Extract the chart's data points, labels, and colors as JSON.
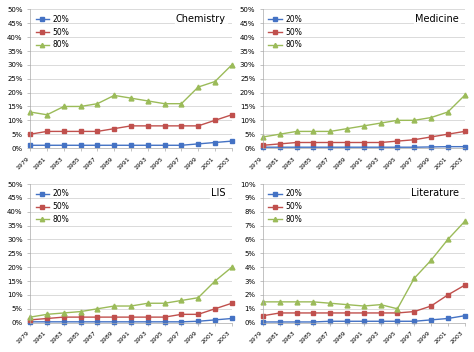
{
  "years": [
    1979,
    1981,
    1983,
    1985,
    1987,
    1989,
    1991,
    1993,
    1995,
    1997,
    1999,
    2001,
    2003
  ],
  "subplots": [
    {
      "title": "Chemistry",
      "ylim": [
        0,
        50
      ],
      "yticks": [
        0,
        5,
        10,
        15,
        20,
        25,
        30,
        35,
        40,
        45,
        50
      ],
      "yticklabels": [
        "0%",
        "5%",
        "10%",
        "15%",
        "20%",
        "25%",
        "30%",
        "35%",
        "40%",
        "45%",
        "50%"
      ],
      "data_20": [
        1,
        1,
        1,
        1,
        1,
        1,
        1,
        1,
        1,
        1,
        1.5,
        2,
        2.5
      ],
      "data_50": [
        5,
        6,
        6,
        6,
        6,
        7,
        8,
        8,
        8,
        8,
        8,
        10,
        12
      ],
      "data_80": [
        13,
        12,
        15,
        15,
        16,
        19,
        18,
        17,
        16,
        16,
        22,
        24,
        30
      ]
    },
    {
      "title": "Medicine",
      "ylim": [
        0,
        50
      ],
      "yticks": [
        0,
        5,
        10,
        15,
        20,
        25,
        30,
        35,
        40,
        45,
        50
      ],
      "yticklabels": [
        "0%",
        "5%",
        "10%",
        "15%",
        "20%",
        "25%",
        "30%",
        "35%",
        "40%",
        "45%",
        "50%"
      ],
      "data_20": [
        0.3,
        0.3,
        0.3,
        0.3,
        0.3,
        0.3,
        0.3,
        0.3,
        0.3,
        0.3,
        0.4,
        0.5,
        0.5
      ],
      "data_50": [
        1,
        1.5,
        2,
        2,
        2,
        2,
        2,
        2,
        2.5,
        3,
        4,
        5,
        6
      ],
      "data_80": [
        4,
        5,
        6,
        6,
        6,
        7,
        8,
        9,
        10,
        10,
        11,
        13,
        19
      ]
    },
    {
      "title": "LIS",
      "ylim": [
        0,
        50
      ],
      "yticks": [
        0,
        5,
        10,
        15,
        20,
        25,
        30,
        35,
        40,
        45,
        50
      ],
      "yticklabels": [
        "0%",
        "5%",
        "10%",
        "15%",
        "20%",
        "25%",
        "30%",
        "35%",
        "40%",
        "45%",
        "50%"
      ],
      "data_20": [
        0.3,
        0.3,
        0.3,
        0.3,
        0.3,
        0.3,
        0.3,
        0.3,
        0.3,
        0.3,
        0.5,
        1,
        1.5
      ],
      "data_50": [
        1,
        1.5,
        2,
        2,
        2,
        2,
        2,
        2,
        2,
        3,
        3,
        5,
        7
      ],
      "data_80": [
        2,
        3,
        3.5,
        4,
        5,
        6,
        6,
        7,
        7,
        8,
        9,
        15,
        20
      ]
    },
    {
      "title": "Literature",
      "ylim": [
        0,
        10
      ],
      "yticks": [
        0,
        1,
        2,
        3,
        4,
        5,
        6,
        7,
        8,
        9,
        10
      ],
      "yticklabels": [
        "0%",
        "1%",
        "2%",
        "3%",
        "4%",
        "5%",
        "6%",
        "7%",
        "8%",
        "9%",
        "10%"
      ],
      "data_20": [
        0.05,
        0.05,
        0.05,
        0.05,
        0.1,
        0.1,
        0.1,
        0.1,
        0.1,
        0.1,
        0.2,
        0.3,
        0.5
      ],
      "data_50": [
        0.5,
        0.7,
        0.7,
        0.7,
        0.7,
        0.7,
        0.7,
        0.7,
        0.7,
        0.8,
        1.2,
        2,
        2.7
      ],
      "data_80": [
        1.5,
        1.5,
        1.5,
        1.5,
        1.4,
        1.3,
        1.2,
        1.3,
        1.0,
        3.2,
        4.5,
        6.0,
        7.3
      ]
    }
  ],
  "color_20": "#4472C4",
  "color_50": "#C0504D",
  "color_80": "#9BBB59",
  "label_20": "20%",
  "label_50": "50%",
  "label_80": "80%",
  "bg_color": "#f0f0f0"
}
